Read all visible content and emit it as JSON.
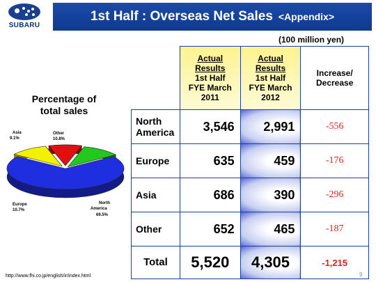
{
  "header": {
    "logo_text": "SUBARU",
    "title": "1st Half : Overseas Net Sales",
    "title_suffix": "<Appendix>"
  },
  "unit": "(100 million yen)",
  "pie": {
    "title_line1": "Percentage of",
    "title_line2": "total sales"
  },
  "table": {
    "col1_l1": "Actual",
    "col1_l2": "Results",
    "col1_l3": "1st Half",
    "col1_l4": "FYE March",
    "col1_l5": "2011",
    "col2_l1": "Actual",
    "col2_l2": "Results",
    "col2_l3": "1st Half",
    "col2_l4": "FYE March",
    "col2_l5": "2012",
    "col3_l1": "Increase/",
    "col3_l2": "Decrease",
    "rows": [
      {
        "label_l1": "North",
        "label_l2": "America",
        "fy2011": "3,546",
        "fy2012": "2,991",
        "change": "-556"
      },
      {
        "label_l1": "Europe",
        "label_l2": "",
        "fy2011": "635",
        "fy2012": "459",
        "change": "-176"
      },
      {
        "label_l1": "Asia",
        "label_l2": "",
        "fy2011": "686",
        "fy2012": "390",
        "change": "-296"
      },
      {
        "label_l1": "Other",
        "label_l2": "",
        "fy2011": "652",
        "fy2012": "465",
        "change": "-187"
      }
    ],
    "total": {
      "label": "Total",
      "fy2011": "5,520",
      "fy2012": "4,305",
      "change": "-1,215"
    }
  },
  "chart_data": {
    "type": "pie",
    "title": "Percentage of total sales",
    "slices": [
      {
        "name": "North America",
        "value": 69.5,
        "label": "69.5%",
        "color": "#1f2fe0"
      },
      {
        "name": "Europe",
        "value": 10.7,
        "label": "10.7%",
        "color": "#f2f200"
      },
      {
        "name": "Asia",
        "value": 9.1,
        "label": "9.1%",
        "color": "#e01010"
      },
      {
        "name": "Other",
        "value": 10.8,
        "label": "10.8%",
        "color": "#22c81e"
      }
    ],
    "label_texts": {
      "na_l1": "North",
      "na_l2": "America",
      "europe": "Europe",
      "asia": "Asia",
      "other": "Other"
    }
  },
  "footer": {
    "url": "http://www.fhi.co.jp/english/ir/index.html",
    "page": "9"
  }
}
